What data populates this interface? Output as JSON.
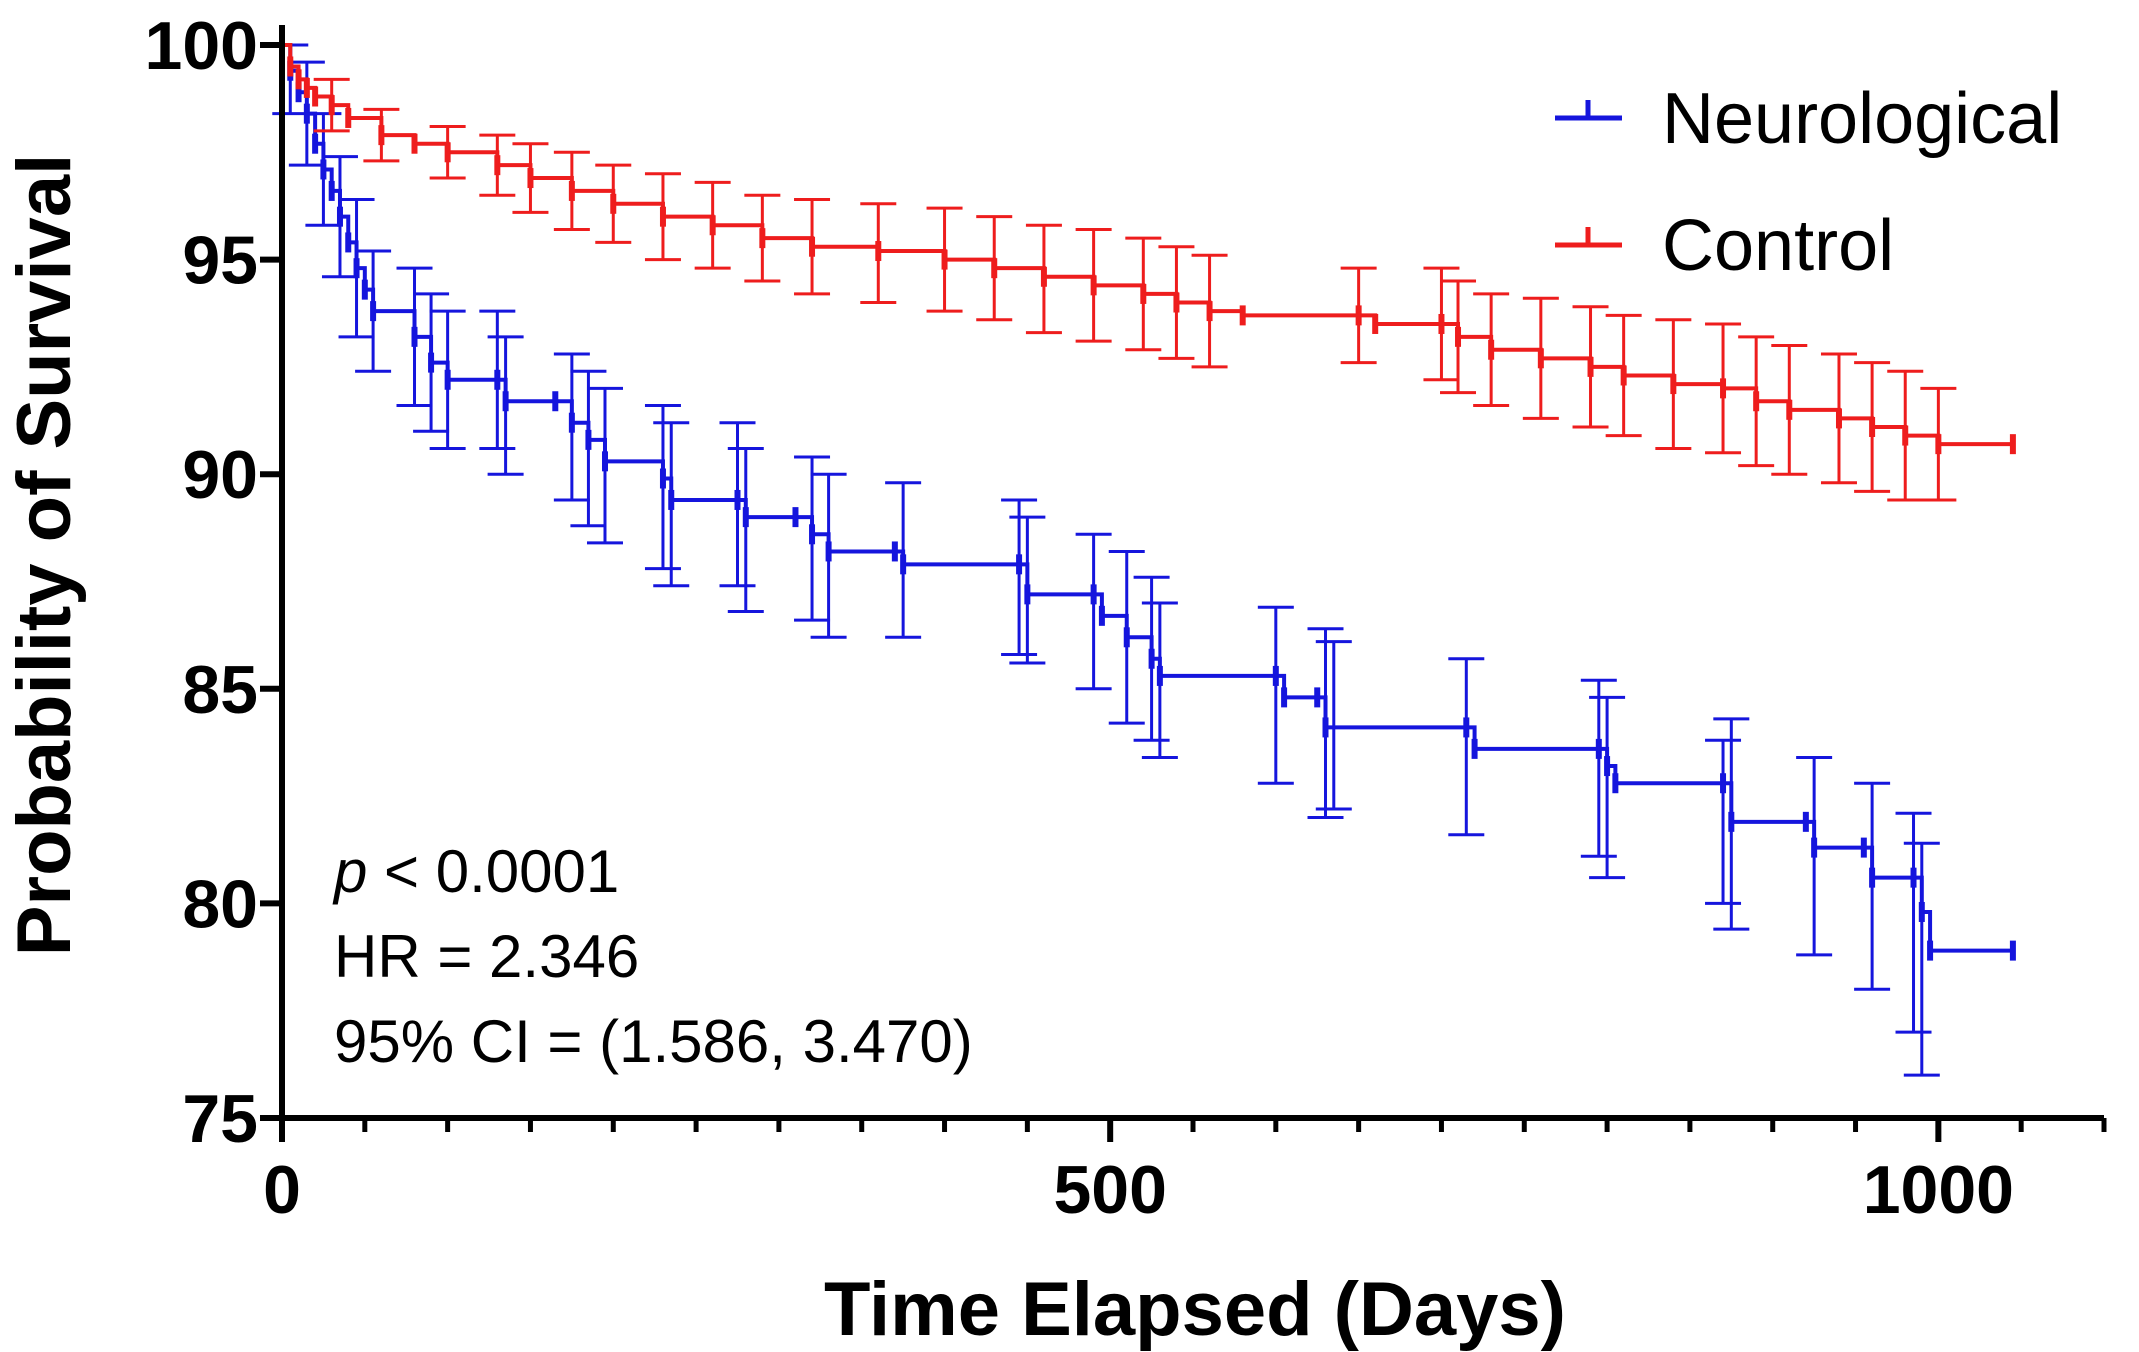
{
  "chart_data": {
    "type": "line",
    "subtype": "kaplan-meier",
    "title": "",
    "xlabel": "Time Elapsed (Days)",
    "ylabel": "Probability of Survival",
    "xlim": [
      0,
      1100
    ],
    "ylim": [
      75,
      100
    ],
    "x_ticks": [
      0,
      500,
      1000
    ],
    "x_tick_labels": [
      "0",
      "500",
      "1000"
    ],
    "y_ticks": [
      75,
      80,
      85,
      90,
      95,
      100
    ],
    "y_tick_labels": [
      "75",
      "80",
      "85",
      "90",
      "95",
      "100"
    ],
    "grid": false,
    "legend_position": "top-right",
    "series": [
      {
        "name": "Neurological",
        "color": "#1515dd",
        "points": [
          [
            0,
            100
          ],
          [
            5,
            99.4
          ],
          [
            10,
            98.9
          ],
          [
            15,
            98.4
          ],
          [
            20,
            97.7
          ],
          [
            25,
            97.1
          ],
          [
            30,
            96.6
          ],
          [
            35,
            96.0
          ],
          [
            40,
            95.4
          ],
          [
            45,
            94.8
          ],
          [
            50,
            94.3
          ],
          [
            55,
            93.8
          ],
          [
            80,
            93.2
          ],
          [
            90,
            92.6
          ],
          [
            100,
            92.2
          ],
          [
            130,
            92.2
          ],
          [
            135,
            91.7
          ],
          [
            165,
            91.7
          ],
          [
            175,
            91.2
          ],
          [
            185,
            90.8
          ],
          [
            195,
            90.3
          ],
          [
            230,
            89.9
          ],
          [
            235,
            89.4
          ],
          [
            275,
            89.4
          ],
          [
            280,
            89.0
          ],
          [
            310,
            89.0
          ],
          [
            320,
            88.6
          ],
          [
            330,
            88.2
          ],
          [
            370,
            88.2
          ],
          [
            375,
            87.9
          ],
          [
            445,
            87.9
          ],
          [
            450,
            87.2
          ],
          [
            490,
            87.2
          ],
          [
            495,
            86.7
          ],
          [
            510,
            86.2
          ],
          [
            525,
            85.7
          ],
          [
            530,
            85.3
          ],
          [
            600,
            85.3
          ],
          [
            605,
            84.8
          ],
          [
            625,
            84.8
          ],
          [
            630,
            84.1
          ],
          [
            715,
            84.1
          ],
          [
            720,
            83.6
          ],
          [
            795,
            83.6
          ],
          [
            800,
            83.2
          ],
          [
            805,
            82.8
          ],
          [
            870,
            82.8
          ],
          [
            875,
            81.9
          ],
          [
            920,
            81.9
          ],
          [
            925,
            81.3
          ],
          [
            955,
            81.3
          ],
          [
            960,
            80.6
          ],
          [
            985,
            80.6
          ],
          [
            990,
            79.8
          ],
          [
            995,
            78.9
          ],
          [
            1045,
            78.9
          ]
        ],
        "error_bars": [
          [
            5,
            98.4,
            100
          ],
          [
            15,
            97.2,
            99.6
          ],
          [
            25,
            95.8,
            98.4
          ],
          [
            35,
            94.6,
            97.4
          ],
          [
            45,
            93.2,
            96.4
          ],
          [
            55,
            92.4,
            95.2
          ],
          [
            80,
            91.6,
            94.8
          ],
          [
            90,
            91.0,
            94.2
          ],
          [
            100,
            90.6,
            93.8
          ],
          [
            130,
            90.6,
            93.8
          ],
          [
            135,
            90.0,
            93.2
          ],
          [
            175,
            89.4,
            92.8
          ],
          [
            185,
            88.8,
            92.4
          ],
          [
            195,
            88.4,
            92.0
          ],
          [
            230,
            87.8,
            91.6
          ],
          [
            235,
            87.4,
            91.2
          ],
          [
            275,
            87.4,
            91.2
          ],
          [
            280,
            86.8,
            90.6
          ],
          [
            320,
            86.6,
            90.4
          ],
          [
            330,
            86.2,
            90.0
          ],
          [
            375,
            86.2,
            89.8
          ],
          [
            445,
            85.8,
            89.4
          ],
          [
            450,
            85.6,
            89.0
          ],
          [
            490,
            85.0,
            88.6
          ],
          [
            510,
            84.2,
            88.2
          ],
          [
            525,
            83.8,
            87.6
          ],
          [
            530,
            83.4,
            87.0
          ],
          [
            600,
            82.8,
            86.9
          ],
          [
            630,
            82.0,
            86.4
          ],
          [
            635,
            82.2,
            86.1
          ],
          [
            715,
            81.6,
            85.7
          ],
          [
            795,
            81.1,
            85.2
          ],
          [
            800,
            80.6,
            84.8
          ],
          [
            875,
            79.4,
            84.3
          ],
          [
            870,
            80.0,
            83.8
          ],
          [
            925,
            78.8,
            83.4
          ],
          [
            960,
            78.0,
            82.8
          ],
          [
            985,
            77.0,
            82.1
          ],
          [
            990,
            76.0,
            81.4
          ]
        ]
      },
      {
        "name": "Control",
        "color": "#ee1d1d",
        "points": [
          [
            0,
            100
          ],
          [
            5,
            99.5
          ],
          [
            10,
            99.2
          ],
          [
            15,
            99.0
          ],
          [
            20,
            98.8
          ],
          [
            30,
            98.6
          ],
          [
            40,
            98.3
          ],
          [
            60,
            97.9
          ],
          [
            80,
            97.7
          ],
          [
            100,
            97.5
          ],
          [
            130,
            97.2
          ],
          [
            150,
            96.9
          ],
          [
            175,
            96.6
          ],
          [
            200,
            96.3
          ],
          [
            230,
            96.0
          ],
          [
            260,
            95.8
          ],
          [
            290,
            95.5
          ],
          [
            320,
            95.3
          ],
          [
            360,
            95.2
          ],
          [
            400,
            95.0
          ],
          [
            430,
            94.8
          ],
          [
            460,
            94.6
          ],
          [
            490,
            94.4
          ],
          [
            520,
            94.2
          ],
          [
            540,
            94.0
          ],
          [
            560,
            93.8
          ],
          [
            580,
            93.7
          ],
          [
            650,
            93.7
          ],
          [
            660,
            93.5
          ],
          [
            700,
            93.5
          ],
          [
            710,
            93.2
          ],
          [
            730,
            92.9
          ],
          [
            760,
            92.7
          ],
          [
            790,
            92.5
          ],
          [
            810,
            92.3
          ],
          [
            840,
            92.1
          ],
          [
            870,
            92.0
          ],
          [
            890,
            91.7
          ],
          [
            910,
            91.5
          ],
          [
            940,
            91.3
          ],
          [
            960,
            91.1
          ],
          [
            980,
            90.9
          ],
          [
            1000,
            90.7
          ],
          [
            1045,
            90.7
          ]
        ],
        "error_bars": [
          [
            30,
            98.0,
            99.2
          ],
          [
            60,
            97.3,
            98.5
          ],
          [
            100,
            96.9,
            98.1
          ],
          [
            130,
            96.5,
            97.9
          ],
          [
            150,
            96.1,
            97.7
          ],
          [
            175,
            95.7,
            97.5
          ],
          [
            200,
            95.4,
            97.2
          ],
          [
            230,
            95.0,
            97.0
          ],
          [
            260,
            94.8,
            96.8
          ],
          [
            290,
            94.5,
            96.5
          ],
          [
            320,
            94.2,
            96.4
          ],
          [
            360,
            94.0,
            96.3
          ],
          [
            400,
            93.8,
            96.2
          ],
          [
            430,
            93.6,
            96.0
          ],
          [
            460,
            93.3,
            95.8
          ],
          [
            490,
            93.1,
            95.7
          ],
          [
            520,
            92.9,
            95.5
          ],
          [
            540,
            92.7,
            95.3
          ],
          [
            560,
            92.5,
            95.1
          ],
          [
            650,
            92.6,
            94.8
          ],
          [
            700,
            92.2,
            94.8
          ],
          [
            710,
            91.9,
            94.5
          ],
          [
            730,
            91.6,
            94.2
          ],
          [
            760,
            91.3,
            94.1
          ],
          [
            790,
            91.1,
            93.9
          ],
          [
            810,
            90.9,
            93.7
          ],
          [
            840,
            90.6,
            93.6
          ],
          [
            870,
            90.5,
            93.5
          ],
          [
            890,
            90.2,
            93.2
          ],
          [
            910,
            90.0,
            93.0
          ],
          [
            940,
            89.8,
            92.8
          ],
          [
            960,
            89.6,
            92.6
          ],
          [
            980,
            89.4,
            92.4
          ],
          [
            1000,
            89.4,
            92.0
          ]
        ]
      }
    ],
    "annotations": [
      {
        "italic_prefix": "p",
        "text": " < 0.0001"
      },
      {
        "italic_prefix": "",
        "text": "HR = 2.346"
      },
      {
        "italic_prefix": "",
        "text": "95% CI = (1.586, 3.470)"
      }
    ]
  }
}
